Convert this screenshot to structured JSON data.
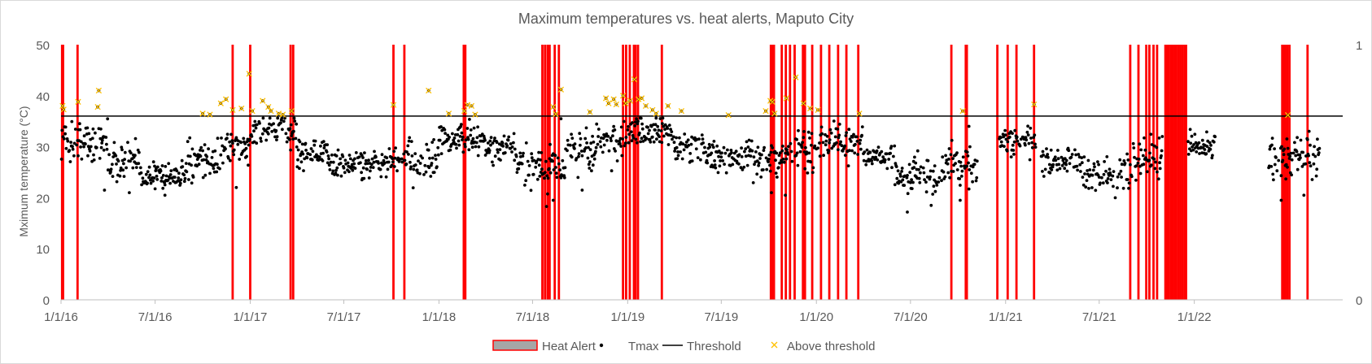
{
  "chart_data": {
    "type": "scatter",
    "title": "Maximum temperatures vs. heat alerts, Maputo City",
    "xlabel": "",
    "ylabel": "Mximum temperature (°C)",
    "y2label": "",
    "ylim": [
      0,
      50
    ],
    "y2lim": [
      0,
      1
    ],
    "yticks": [
      "0",
      "10",
      "20",
      "30",
      "40",
      "50"
    ],
    "y2ticks": [
      "0",
      "1"
    ],
    "xlim": [
      "2016-01-01",
      "2022-10-15"
    ],
    "xticks": [
      {
        "date": "2016-01-01",
        "label": "1/1/16"
      },
      {
        "date": "2016-07-01",
        "label": "7/1/16"
      },
      {
        "date": "2017-01-01",
        "label": "1/1/17"
      },
      {
        "date": "2017-07-01",
        "label": "7/1/17"
      },
      {
        "date": "2018-01-01",
        "label": "1/1/18"
      },
      {
        "date": "2018-07-01",
        "label": "7/1/18"
      },
      {
        "date": "2019-01-01",
        "label": "1/1/19"
      },
      {
        "date": "2019-07-01",
        "label": "7/1/19"
      },
      {
        "date": "2020-01-01",
        "label": "1/1/20"
      },
      {
        "date": "2020-07-01",
        "label": "7/1/20"
      },
      {
        "date": "2021-01-01",
        "label": "1/1/21"
      },
      {
        "date": "2021-07-01",
        "label": "7/1/21"
      },
      {
        "date": "2022-01-01",
        "label": "1/1/22"
      }
    ],
    "threshold": 36,
    "legend_position": "bottom",
    "colors": {
      "heat_alert": "#ff0000",
      "tmax": "#000000",
      "threshold": "#000000",
      "above": "#ffc000",
      "axis": "#bfbfbf",
      "text": "#595959"
    },
    "series": [
      {
        "name": "Heat Alert",
        "kind": "bar",
        "dates": [
          "2016-01-03",
          "2016-01-05",
          "2016-02-02",
          "2016-11-28",
          "2017-01-01",
          "2017-03-20",
          "2017-03-25",
          "2017-10-05",
          "2017-10-26",
          "2018-02-18",
          "2018-02-21",
          "2018-07-20",
          "2018-07-25",
          "2018-07-30",
          "2018-08-03",
          "2018-08-13",
          "2018-08-21",
          "2018-12-23",
          "2018-12-29",
          "2019-01-05",
          "2019-01-13",
          "2019-01-16",
          "2019-01-21",
          "2019-03-08",
          "2019-10-05",
          "2019-10-08",
          "2019-10-11",
          "2019-10-26",
          "2019-11-03",
          "2019-11-11",
          "2019-11-20",
          "2019-12-06",
          "2019-12-10",
          "2019-12-24",
          "2020-01-10",
          "2020-01-26",
          "2020-02-12",
          "2020-02-28",
          "2020-03-22",
          "2020-09-18",
          "2020-10-16",
          "2020-10-18",
          "2020-12-16",
          "2021-01-05",
          "2021-01-22",
          "2021-02-25",
          "2021-08-30",
          "2021-09-15",
          "2021-09-30",
          "2021-10-06",
          "2021-10-14",
          "2021-10-21",
          "2021-11-06",
          "2021-11-10",
          "2021-11-13",
          "2021-11-17",
          "2021-11-20",
          "2021-11-24",
          "2021-11-27",
          "2021-12-01",
          "2021-12-05",
          "2021-12-09",
          "2021-12-13",
          "2021-12-16",
          "2022-06-20",
          "2022-06-23",
          "2022-06-26",
          "2022-06-30",
          "2022-07-04",
          "2022-08-08"
        ]
      },
      {
        "name": "Tmax",
        "kind": "scatter",
        "ranges": [
          [
            "2016-01-01",
            "2016-03-31",
            31,
            3.0
          ],
          [
            "2016-04-01",
            "2016-05-31",
            27,
            2.5
          ],
          [
            "2016-06-01",
            "2016-08-31",
            24.5,
            2.2
          ],
          [
            "2016-09-01",
            "2016-10-31",
            27,
            2.5
          ],
          [
            "2016-11-01",
            "2016-12-31",
            30,
            3.0
          ],
          [
            "2017-01-01",
            "2017-03-31",
            33,
            2.5
          ],
          [
            "2017-04-01",
            "2017-05-31",
            29,
            2.0
          ],
          [
            "2017-06-01",
            "2017-08-31",
            26.5,
            2.0
          ],
          [
            "2017-09-01",
            "2017-10-31",
            27,
            2.0
          ],
          [
            "2017-11-01",
            "2017-12-31",
            27,
            3.0
          ],
          [
            "2018-01-01",
            "2018-03-31",
            31.5,
            2.0
          ],
          [
            "2018-04-01",
            "2018-05-31",
            29.5,
            2.0
          ],
          [
            "2018-06-01",
            "2018-08-31",
            26.5,
            3.0
          ],
          [
            "2018-09-01",
            "2018-10-31",
            29,
            3.0
          ],
          [
            "2018-11-01",
            "2018-12-31",
            31,
            3.0
          ],
          [
            "2019-01-01",
            "2019-03-31",
            33,
            2.0
          ],
          [
            "2019-04-01",
            "2019-05-31",
            30,
            2.0
          ],
          [
            "2019-06-01",
            "2019-08-31",
            28,
            2.0
          ],
          [
            "2019-09-01",
            "2019-10-31",
            27.5,
            2.5
          ],
          [
            "2019-11-01",
            "2019-12-31",
            29.5,
            3.0
          ],
          [
            "2020-01-01",
            "2020-03-31",
            31,
            2.5
          ],
          [
            "2020-04-01",
            "2020-05-31",
            28,
            1.5
          ],
          [
            "2020-06-01",
            "2020-08-31",
            24.5,
            2.5
          ],
          [
            "2020-09-01",
            "2020-11-10",
            26.5,
            3.0
          ],
          [
            "2020-12-20",
            "2021-02-28",
            31,
            2.0
          ],
          [
            "2021-03-10",
            "2021-05-31",
            27,
            2.0
          ],
          [
            "2021-06-01",
            "2021-08-31",
            24.5,
            2.5
          ],
          [
            "2021-09-01",
            "2021-10-31",
            28,
            3.0
          ],
          [
            "2021-12-20",
            "2022-02-10",
            30,
            2.0
          ],
          [
            "2022-05-25",
            "2022-08-31",
            28,
            3.0
          ]
        ],
        "extremes": [
          [
            "2016-03-25",
            21.5
          ],
          [
            "2016-05-12",
            21.0
          ],
          [
            "2016-07-20",
            20.5
          ],
          [
            "2016-12-05",
            22.0
          ],
          [
            "2017-08-05",
            23.5
          ],
          [
            "2018-07-28",
            18.3
          ],
          [
            "2018-08-10",
            19.5
          ],
          [
            "2018-10-05",
            21.5
          ],
          [
            "2019-10-06",
            21.0
          ],
          [
            "2019-11-02",
            20.5
          ],
          [
            "2020-06-25",
            17.2
          ],
          [
            "2020-08-10",
            18.5
          ],
          [
            "2020-10-05",
            19.5
          ],
          [
            "2021-08-01",
            20.0
          ],
          [
            "2022-06-18",
            19.5
          ],
          [
            "2022-08-01",
            20.5
          ],
          [
            "2018-08-25",
            35.5
          ],
          [
            "2019-01-20",
            34.5
          ],
          [
            "2020-10-22",
            34.0
          ]
        ]
      },
      {
        "name": "Threshold",
        "kind": "line",
        "value": 36
      },
      {
        "name": "Above threshold",
        "kind": "scatter",
        "points": [
          [
            "2016-01-04",
            38.0
          ],
          [
            "2016-01-06",
            37.3
          ],
          [
            "2016-02-03",
            38.8
          ],
          [
            "2016-03-14",
            41.0
          ],
          [
            "2016-03-12",
            37.8
          ],
          [
            "2016-10-01",
            36.5
          ],
          [
            "2016-10-15",
            36.3
          ],
          [
            "2016-11-05",
            38.5
          ],
          [
            "2016-11-15",
            39.3
          ],
          [
            "2016-11-28",
            37.2
          ],
          [
            "2016-12-15",
            37.5
          ],
          [
            "2016-12-30",
            44.3
          ],
          [
            "2017-01-05",
            37.0
          ],
          [
            "2017-01-25",
            39.0
          ],
          [
            "2017-02-05",
            37.8
          ],
          [
            "2017-02-10",
            37.0
          ],
          [
            "2017-02-25",
            36.5
          ],
          [
            "2017-03-05",
            36.3
          ],
          [
            "2017-03-22",
            37.0
          ],
          [
            "2017-10-05",
            38.2
          ],
          [
            "2017-12-12",
            41.0
          ],
          [
            "2018-01-20",
            36.5
          ],
          [
            "2018-02-19",
            37.0
          ],
          [
            "2018-02-25",
            38.2
          ],
          [
            "2018-03-05",
            38.0
          ],
          [
            "2018-03-12",
            36.3
          ],
          [
            "2018-08-10",
            37.8
          ],
          [
            "2018-08-15",
            36.4
          ],
          [
            "2018-08-25",
            41.2
          ],
          [
            "2018-10-20",
            36.8
          ],
          [
            "2018-11-20",
            39.5
          ],
          [
            "2018-11-25",
            38.5
          ],
          [
            "2018-12-05",
            39.3
          ],
          [
            "2018-12-10",
            38.3
          ],
          [
            "2018-12-23",
            40.0
          ],
          [
            "2018-12-28",
            38.5
          ],
          [
            "2019-01-06",
            39.0
          ],
          [
            "2019-01-14",
            43.2
          ],
          [
            "2019-01-22",
            39.3
          ],
          [
            "2019-01-28",
            39.5
          ],
          [
            "2019-02-05",
            38.0
          ],
          [
            "2019-02-18",
            37.2
          ],
          [
            "2019-02-25",
            36.5
          ],
          [
            "2019-03-20",
            38.0
          ],
          [
            "2019-04-15",
            37.0
          ],
          [
            "2019-07-15",
            36.2
          ],
          [
            "2019-09-25",
            37.0
          ],
          [
            "2019-10-04",
            39.0
          ],
          [
            "2019-10-08",
            38.8
          ],
          [
            "2019-10-12",
            36.5
          ],
          [
            "2019-11-04",
            39.5
          ],
          [
            "2019-11-22",
            43.6
          ],
          [
            "2019-12-07",
            38.5
          ],
          [
            "2019-12-20",
            37.5
          ],
          [
            "2020-01-04",
            37.2
          ],
          [
            "2020-03-24",
            36.5
          ],
          [
            "2020-10-10",
            37.0
          ],
          [
            "2021-02-25",
            38.3
          ],
          [
            "2022-07-01",
            36.2
          ]
        ]
      }
    ]
  }
}
